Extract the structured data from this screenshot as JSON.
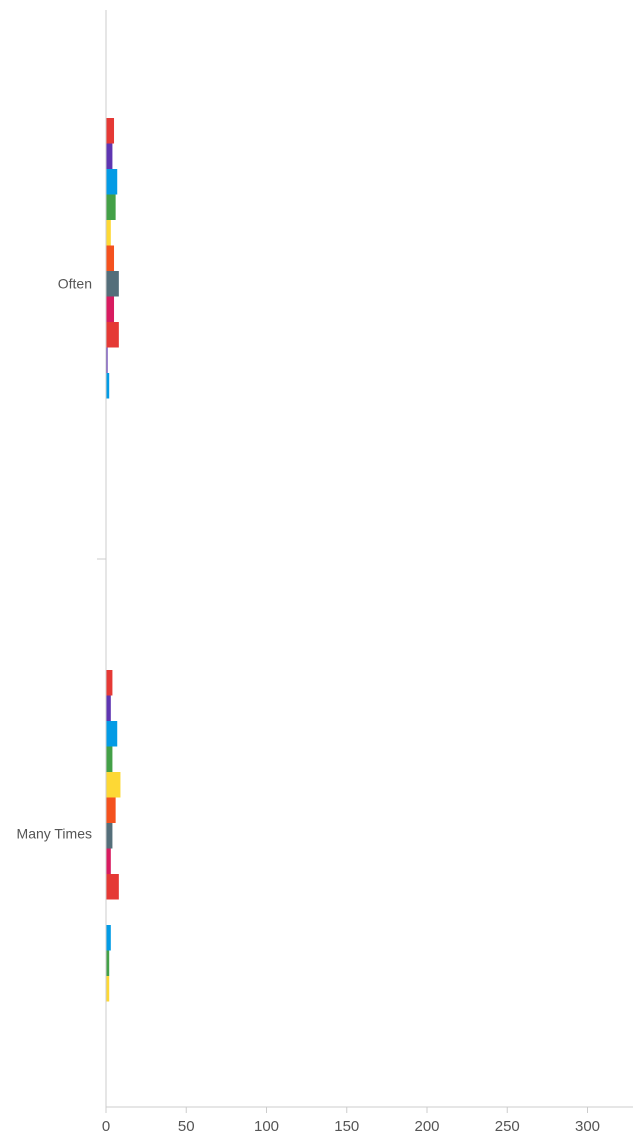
{
  "chart_data": {
    "type": "bar",
    "orientation": "horizontal",
    "categories": [
      "Often",
      "Many Times"
    ],
    "x_ticks": [
      "0",
      "50",
      "100",
      "150",
      "200",
      "250",
      "300"
    ],
    "xlim": [
      0,
      330
    ],
    "grid": false,
    "legend": "none",
    "series": [
      {
        "color": "#e53935",
        "values": [
          5,
          4
        ]
      },
      {
        "color": "#5e35b1",
        "values": [
          4,
          3
        ]
      },
      {
        "color": "#039be5",
        "values": [
          7,
          7
        ]
      },
      {
        "color": "#43a047",
        "values": [
          6,
          4
        ]
      },
      {
        "color": "#fdd835",
        "values": [
          3,
          9
        ]
      },
      {
        "color": "#f4511e",
        "values": [
          5,
          6
        ]
      },
      {
        "color": "#546e7a",
        "values": [
          8,
          4
        ]
      },
      {
        "color": "#d81b60",
        "values": [
          5,
          3
        ]
      },
      {
        "color": "#e53935",
        "values": [
          8,
          8
        ]
      },
      {
        "color": "#5e35b1",
        "values": [
          1,
          0
        ]
      },
      {
        "color": "#039be5",
        "values": [
          2,
          3
        ]
      },
      {
        "color": "#43a047",
        "values": [
          0,
          2
        ]
      },
      {
        "color": "#fdd835",
        "values": [
          0,
          2
        ]
      }
    ]
  }
}
